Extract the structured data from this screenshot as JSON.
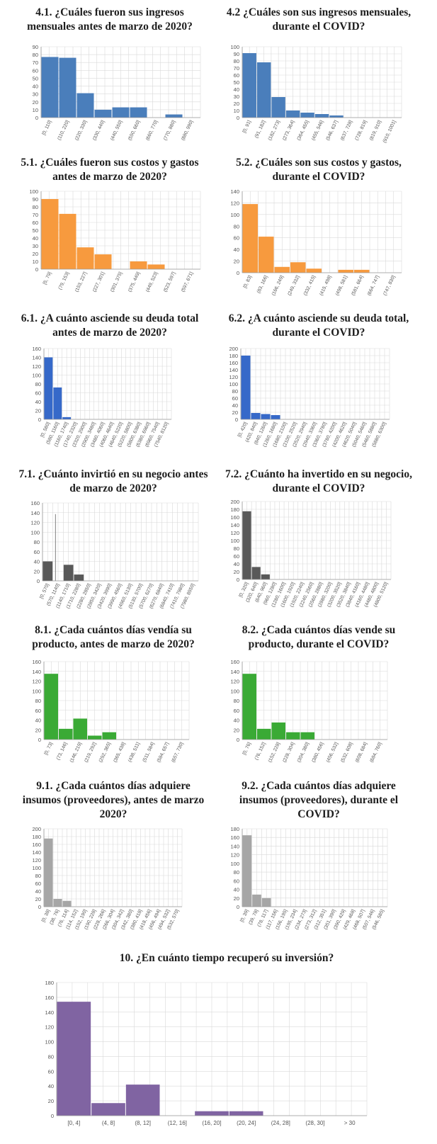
{
  "charts": [
    {
      "id": "c41",
      "title_lines": [
        "4.1. ¿Cuáles fueron sus ingresos",
        "mensuales antes de marzo de 2020?"
      ],
      "color": "#4a7ebb",
      "ymax": 90,
      "ystep": 10,
      "chart_data": {
        "type": "bar",
        "xlabel": "",
        "ylabel": "",
        "categories": [
          "[0, 110]",
          "(110, 220]",
          "(220, 330]",
          "(330, 440]",
          "(440, 550]",
          "(550, 660]",
          "(660, 770]",
          "(770, 880]",
          "(880, 990]"
        ],
        "values": [
          77,
          76,
          31,
          10,
          13,
          13,
          0,
          4,
          0
        ],
        "ylim": [
          0,
          90
        ]
      }
    },
    {
      "id": "c42",
      "title_lines": [
        "4.2 ¿Cuáles son sus ingresos mensuales,",
        "durante el COVID?"
      ],
      "color": "#4a7ebb",
      "ymax": 100,
      "ystep": 10,
      "chart_data": {
        "type": "bar",
        "xlabel": "",
        "ylabel": "",
        "categories": [
          "[0, 91]",
          "(91, 182]",
          "(182, 273]",
          "(273, 364]",
          "(364, 455]",
          "(455, 546]",
          "(546, 637]",
          "(637, 728]",
          "(728, 819]",
          "(819, 910]",
          "(910, 1001]"
        ],
        "values": [
          91,
          78,
          29,
          10,
          7,
          5,
          3,
          0,
          0,
          0,
          0
        ],
        "ylim": [
          0,
          100
        ]
      }
    },
    {
      "id": "c51",
      "title_lines": [
        "5.1. ¿Cuáles fueron sus costos y gastos",
        "antes de marzo de 2020?"
      ],
      "color": "#f79a3e",
      "ymax": 100,
      "ystep": 10,
      "chart_data": {
        "type": "bar",
        "xlabel": "",
        "ylabel": "",
        "categories": [
          "[5, 79]",
          "(79, 153]",
          "(153, 227]",
          "(227, 301]",
          "(301, 375]",
          "(375, 449]",
          "(449, 523]",
          "(523, 597]",
          "(597, 671]"
        ],
        "values": [
          90,
          71,
          28,
          19,
          0,
          10,
          6,
          0,
          0
        ],
        "ylim": [
          0,
          100
        ]
      }
    },
    {
      "id": "c52",
      "title_lines": [
        "5.2. ¿Cuáles son sus costos y gastos,",
        "durante el COVID?"
      ],
      "color": "#f79a3e",
      "ymax": 140,
      "ystep": 20,
      "chart_data": {
        "type": "bar",
        "xlabel": "",
        "ylabel": "",
        "categories": [
          "[0, 83]",
          "(83, 166]",
          "(166, 249]",
          "(249, 332]",
          "(332, 415]",
          "(415, 498]",
          "(498, 581]",
          "(581, 664]",
          "(664, 747]",
          "(747, 830]"
        ],
        "values": [
          118,
          62,
          10,
          18,
          7,
          0,
          5,
          5,
          0,
          0
        ],
        "ylim": [
          0,
          140
        ]
      }
    },
    {
      "id": "c61",
      "title_lines": [
        "6.1. ¿A cuánto asciende su deuda total",
        "antes de marzo de 2020?"
      ],
      "color": "#3669c9",
      "ymax": 160,
      "ystep": 20,
      "chart_data": {
        "type": "bar",
        "xlabel": "",
        "ylabel": "",
        "categories": [
          "[0, 580]",
          "(580, 1160]",
          "(1160, 1740]",
          "(1740, 2320]",
          "(2320, 2900]",
          "(2900, 3480]",
          "(3480, 4060]",
          "(4060, 4640]",
          "(4640, 5220]",
          "(5220, 5800]",
          "(5800, 6380]",
          "(6380, 6960]",
          "(6960, 7540]",
          "(7540, 8120]"
        ],
        "values": [
          140,
          72,
          5,
          0,
          0,
          0,
          0,
          0,
          0,
          0,
          0,
          0,
          0,
          0
        ],
        "ylim": [
          0,
          160
        ]
      }
    },
    {
      "id": "c62",
      "title_lines": [
        "6.2. ¿A cuánto asciende su deuda total,",
        "durante el COVID?"
      ],
      "color": "#3669c9",
      "ymax": 200,
      "ystep": 20,
      "chart_data": {
        "type": "bar",
        "xlabel": "",
        "ylabel": "",
        "categories": [
          "[0, 420]",
          "(420, 840]",
          "(840, 1260]",
          "(1260, 1680]",
          "(1680, 2100]",
          "(2100, 2520]",
          "(2520, 2940]",
          "(2940, 3360]",
          "(3360, 3780]",
          "(3780, 4200]",
          "(4200, 4620]",
          "(4620, 5040]",
          "(5040, 5460]",
          "(5460, 5880]",
          "(5880, 6300]"
        ],
        "values": [
          180,
          18,
          15,
          12,
          0,
          0,
          0,
          0,
          0,
          0,
          0,
          0,
          0,
          0,
          0
        ],
        "ylim": [
          0,
          200
        ]
      }
    },
    {
      "id": "c71",
      "title_lines": [
        "7.1. ¿Cuánto invirtió en su negocio antes",
        "de marzo de 2020?"
      ],
      "color": "#595959",
      "ymax": 160,
      "ystep": 20,
      "marker_line": 137,
      "chart_data": {
        "type": "bar",
        "xlabel": "",
        "ylabel": "",
        "categories": [
          "[0, 570]",
          "(570, 1140]",
          "(1140, 1710]",
          "(1710, 2280]",
          "(2280, 2850]",
          "(2850, 3420]",
          "(3420, 3990]",
          "(3990, 4560]",
          "(4560, 5130]",
          "(5130, 5700]",
          "(5700, 6270]",
          "(6270, 6840]",
          "(6840, 7410]",
          "(7410, 7980]",
          "(7980, 8550]"
        ],
        "values": [
          40,
          0,
          33,
          13,
          0,
          0,
          0,
          0,
          0,
          0,
          0,
          0,
          0,
          0,
          0
        ],
        "ylim": [
          0,
          160
        ]
      }
    },
    {
      "id": "c72",
      "title_lines": [
        "7.2. ¿Cuánto ha invertido en su negocio,",
        "durante el COVID?"
      ],
      "color": "#595959",
      "ymax": 200,
      "ystep": 20,
      "chart_data": {
        "type": "bar",
        "xlabel": "",
        "ylabel": "",
        "categories": [
          "[0, 320]",
          "(320, 640]",
          "(640, 960]",
          "(960, 1280]",
          "(1280, 1600]",
          "(1600, 1920]",
          "(1920, 2240]",
          "(2240, 2560]",
          "(2560, 2880]",
          "(2880, 3200]",
          "(3200, 3520]",
          "(3520, 3840]",
          "(3840, 4160]",
          "(4160, 4480]",
          "(4480, 4800]",
          "(4800, 5120]"
        ],
        "values": [
          175,
          32,
          13,
          0,
          0,
          0,
          0,
          0,
          0,
          0,
          0,
          0,
          0,
          0,
          0,
          0
        ],
        "ylim": [
          0,
          200
        ]
      }
    },
    {
      "id": "c81",
      "title_lines": [
        "8.1. ¿Cada cuántos días vendía su",
        "producto, antes de marzo de 2020?"
      ],
      "color": "#3aaa35",
      "ymax": 160,
      "ystep": 20,
      "chart_data": {
        "type": "bar",
        "xlabel": "",
        "ylabel": "",
        "categories": [
          "[0, 73]",
          "(73, 146]",
          "(146, 219]",
          "(219, 292]",
          "(292, 365]",
          "(365, 438]",
          "(438, 511]",
          "(511, 584]",
          "(584, 657]",
          "(657, 730]"
        ],
        "values": [
          135,
          22,
          43,
          8,
          15,
          0,
          0,
          0,
          0,
          0
        ],
        "ylim": [
          0,
          160
        ]
      }
    },
    {
      "id": "c82",
      "title_lines": [
        "8.2. ¿Cada cuántos días vende su",
        "producto, durante el COVID?"
      ],
      "color": "#3aaa35",
      "ymax": 160,
      "ystep": 20,
      "chart_data": {
        "type": "bar",
        "xlabel": "",
        "ylabel": "",
        "categories": [
          "[0, 76]",
          "(76, 152]",
          "(152, 228]",
          "(228, 304]",
          "(304, 380]",
          "(380, 456]",
          "(456, 532]",
          "(532, 608]",
          "(608, 684]",
          "(684, 760]"
        ],
        "values": [
          135,
          22,
          35,
          15,
          15,
          0,
          0,
          0,
          0,
          0
        ],
        "ylim": [
          0,
          160
        ]
      }
    },
    {
      "id": "c91",
      "title_lines": [
        "9.1. ¿Cada cuántos días adquiere",
        "insumos (proveedores), antes de marzo",
        "2020?"
      ],
      "color": "#a6a6a6",
      "ymax": 200,
      "ystep": 20,
      "chart_data": {
        "type": "bar",
        "xlabel": "",
        "ylabel": "",
        "categories": [
          "[0, 38]",
          "(38, 76]",
          "(76, 114]",
          "(114, 152]",
          "(152, 190]",
          "(190, 228]",
          "(228, 266]",
          "(266, 304]",
          "(304, 342]",
          "(342, 380]",
          "(380, 418]",
          "(418, 456]",
          "(456, 494]",
          "(494, 532]",
          "(532, 570]"
        ],
        "values": [
          175,
          20,
          15,
          0,
          0,
          0,
          0,
          0,
          0,
          0,
          0,
          0,
          0,
          0,
          0
        ],
        "ylim": [
          0,
          200
        ]
      }
    },
    {
      "id": "c92",
      "title_lines": [
        "9.2. ¿Cada cuántos días adquiere",
        "insumos (proveedores), durante el",
        "COVID?"
      ],
      "color": "#a6a6a6",
      "ymax": 180,
      "ystep": 20,
      "chart_data": {
        "type": "bar",
        "xlabel": "",
        "ylabel": "",
        "categories": [
          "[0, 39]",
          "(39, 78]",
          "(78, 117]",
          "(117, 156]",
          "(156, 195]",
          "(195, 234]",
          "(234, 273]",
          "(273, 312]",
          "(312, 351]",
          "(351, 390]",
          "(390, 429]",
          "(429, 468]",
          "(468, 507]",
          "(507, 546]",
          "(546, 585]"
        ],
        "values": [
          165,
          28,
          20,
          0,
          0,
          0,
          0,
          0,
          0,
          0,
          0,
          0,
          0,
          0,
          0
        ],
        "ylim": [
          0,
          180
        ]
      }
    },
    {
      "id": "c10",
      "title_lines": [
        "10. ¿En cuánto tiempo recuperó su inversión?"
      ],
      "color": "#8064a2",
      "ymax": 180,
      "ystep": 20,
      "horizontal_labels": true,
      "chart_data": {
        "type": "bar",
        "xlabel": "",
        "ylabel": "",
        "categories": [
          "[0, 4]",
          "(4, 8]",
          "(8, 12]",
          "(12, 16]",
          "(16, 20]",
          "(20, 24]",
          "(24, 28]",
          "(28, 30]",
          "> 30"
        ],
        "values": [
          154,
          17,
          42,
          0,
          6,
          6,
          0,
          0,
          0
        ],
        "ylim": [
          0,
          180
        ]
      }
    }
  ]
}
